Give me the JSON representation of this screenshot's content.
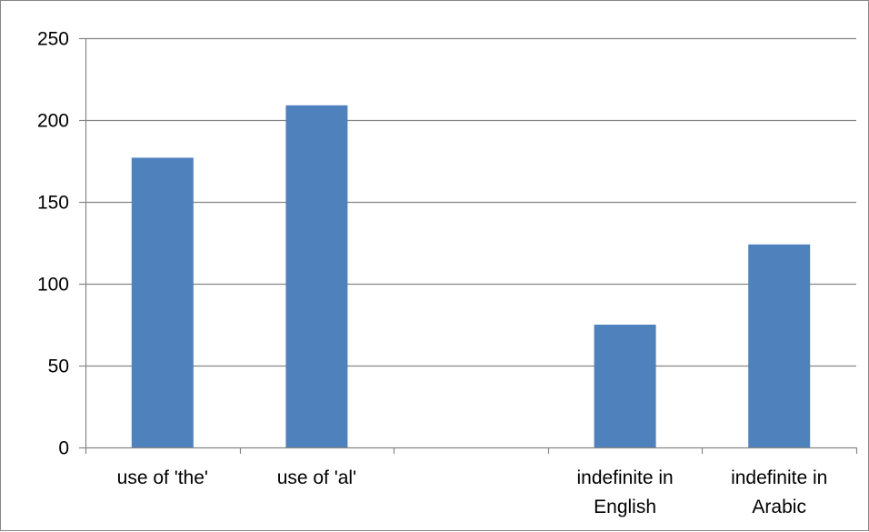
{
  "chart_data": {
    "type": "bar",
    "categories": [
      [
        "use of 'the'"
      ],
      [
        "use of 'al'"
      ],
      [
        ""
      ],
      [
        "indefinite in",
        "English"
      ],
      [
        "indefinite in",
        "Arabic"
      ]
    ],
    "values": [
      177,
      209,
      null,
      75,
      124
    ],
    "ylim": [
      0,
      250
    ],
    "yticks": [
      0,
      50,
      100,
      150,
      200,
      250
    ],
    "title": "",
    "xlabel": "",
    "ylabel": "",
    "grid": true,
    "legend": "none",
    "colors": {
      "bar": "#4F81BD",
      "grid": "#868686",
      "axis": "#868686",
      "text": "#000000"
    }
  }
}
